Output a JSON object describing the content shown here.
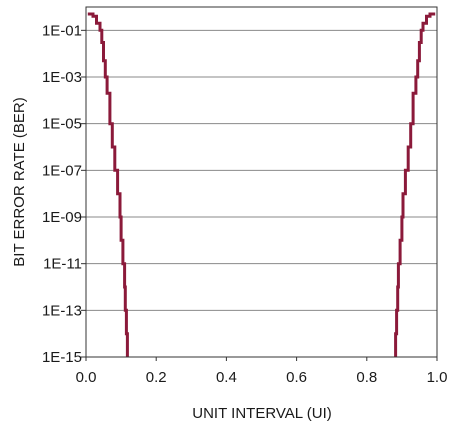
{
  "chart_data": {
    "type": "line",
    "title": "",
    "xlabel": "UNIT INTERVAL (UI)",
    "ylabel": "BIT ERROR RATE (BER)",
    "xlim": [
      0,
      1
    ],
    "ylim_log10": [
      -15,
      0
    ],
    "y_scale": "log",
    "grid": {
      "horizontal": true,
      "vertical": false
    },
    "x_ticks": [
      {
        "value": 0.0,
        "label": "0.0"
      },
      {
        "value": 0.2,
        "label": "0.2"
      },
      {
        "value": 0.4,
        "label": "0.4"
      },
      {
        "value": 0.6,
        "label": "0.6"
      },
      {
        "value": 0.8,
        "label": "0.8"
      },
      {
        "value": 1.0,
        "label": "1.0"
      }
    ],
    "y_ticks": [
      {
        "value": 0.1,
        "label": "1E-01"
      },
      {
        "value": 0.001,
        "label": "1E-03"
      },
      {
        "value": 1e-05,
        "label": "1E-05"
      },
      {
        "value": 1e-07,
        "label": "1E-07"
      },
      {
        "value": 1e-09,
        "label": "1E-09"
      },
      {
        "value": 1e-11,
        "label": "1E-11"
      },
      {
        "value": 1e-13,
        "label": "1E-13"
      },
      {
        "value": 1e-15,
        "label": "1E-15"
      }
    ],
    "series_color": "#8b1a3a",
    "series": [
      {
        "points": [
          [
            0.005,
            0.5
          ],
          [
            0.02,
            0.4
          ],
          [
            0.03,
            0.2
          ],
          [
            0.04,
            0.1
          ],
          [
            0.045,
            0.03
          ],
          [
            0.05,
            0.005
          ],
          [
            0.055,
            0.001
          ],
          [
            0.06,
            0.0002
          ],
          [
            0.068,
            1e-05
          ],
          [
            0.075,
            1e-06
          ],
          [
            0.082,
            1e-07
          ],
          [
            0.09,
            1e-08
          ],
          [
            0.097,
            1e-09
          ],
          [
            0.1,
            1e-10
          ],
          [
            0.105,
            1e-11
          ],
          [
            0.11,
            1e-12
          ],
          [
            0.112,
            1e-13
          ],
          [
            0.115,
            1e-14
          ],
          [
            0.118,
            1e-15
          ]
        ]
      },
      {
        "points": [
          [
            0.995,
            0.5
          ],
          [
            0.98,
            0.4
          ],
          [
            0.97,
            0.2
          ],
          [
            0.96,
            0.1
          ],
          [
            0.955,
            0.03
          ],
          [
            0.95,
            0.005
          ],
          [
            0.945,
            0.001
          ],
          [
            0.94,
            0.0002
          ],
          [
            0.932,
            1e-05
          ],
          [
            0.925,
            1e-06
          ],
          [
            0.918,
            1e-07
          ],
          [
            0.91,
            1e-08
          ],
          [
            0.903,
            1e-09
          ],
          [
            0.9,
            1e-10
          ],
          [
            0.895,
            1e-11
          ],
          [
            0.89,
            1e-12
          ],
          [
            0.888,
            1e-13
          ],
          [
            0.885,
            1e-14
          ],
          [
            0.882,
            1e-15
          ]
        ]
      }
    ]
  }
}
